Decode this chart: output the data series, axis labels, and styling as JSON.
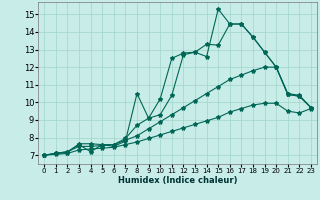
{
  "xlabel": "Humidex (Indice chaleur)",
  "background_color": "#c8ece8",
  "grid_color": "#a0d4cc",
  "line_color": "#006655",
  "xlim": [
    -0.5,
    23.5
  ],
  "ylim": [
    6.5,
    15.7
  ],
  "yticks": [
    7,
    8,
    9,
    10,
    11,
    12,
    13,
    14,
    15
  ],
  "xticks": [
    0,
    1,
    2,
    3,
    4,
    5,
    6,
    7,
    8,
    9,
    10,
    11,
    12,
    13,
    14,
    15,
    16,
    17,
    18,
    19,
    20,
    21,
    22,
    23
  ],
  "lines": [
    {
      "x": [
        0,
        1,
        2,
        3,
        4,
        5,
        6,
        7,
        8,
        9,
        10,
        11,
        12,
        13,
        14,
        15,
        16,
        17,
        18,
        19,
        20,
        21,
        22,
        23
      ],
      "y": [
        7.0,
        7.1,
        7.2,
        7.6,
        7.2,
        7.6,
        7.5,
        7.8,
        10.5,
        9.1,
        9.3,
        10.4,
        12.7,
        12.85,
        12.6,
        15.3,
        14.45,
        14.45,
        13.7,
        12.85,
        12.0,
        10.45,
        10.35,
        9.7
      ]
    },
    {
      "x": [
        0,
        1,
        2,
        3,
        4,
        5,
        6,
        7,
        8,
        9,
        10,
        11,
        12,
        13,
        14,
        15,
        16,
        17,
        18,
        19,
        20,
        21,
        22,
        23
      ],
      "y": [
        7.0,
        7.1,
        7.15,
        7.65,
        7.65,
        7.6,
        7.6,
        7.95,
        8.7,
        9.1,
        10.2,
        12.5,
        12.8,
        12.85,
        13.3,
        13.25,
        14.45,
        14.45,
        13.7,
        12.85,
        12.0,
        10.45,
        10.35,
        9.7
      ]
    },
    {
      "x": [
        0,
        1,
        2,
        3,
        4,
        5,
        6,
        7,
        8,
        9,
        10,
        11,
        12,
        13,
        14,
        15,
        16,
        17,
        18,
        19,
        20,
        21,
        22,
        23
      ],
      "y": [
        7.0,
        7.1,
        7.2,
        7.5,
        7.5,
        7.55,
        7.6,
        7.85,
        8.1,
        8.5,
        8.9,
        9.3,
        9.7,
        10.1,
        10.5,
        10.9,
        11.3,
        11.55,
        11.8,
        12.0,
        12.0,
        10.5,
        10.4,
        9.7
      ]
    },
    {
      "x": [
        0,
        1,
        2,
        3,
        4,
        5,
        6,
        7,
        8,
        9,
        10,
        11,
        12,
        13,
        14,
        15,
        16,
        17,
        18,
        19,
        20,
        21,
        22,
        23
      ],
      "y": [
        7.0,
        7.05,
        7.1,
        7.3,
        7.35,
        7.4,
        7.45,
        7.6,
        7.75,
        7.95,
        8.15,
        8.35,
        8.55,
        8.75,
        8.95,
        9.15,
        9.45,
        9.65,
        9.85,
        9.95,
        9.95,
        9.5,
        9.4,
        9.65
      ]
    }
  ]
}
